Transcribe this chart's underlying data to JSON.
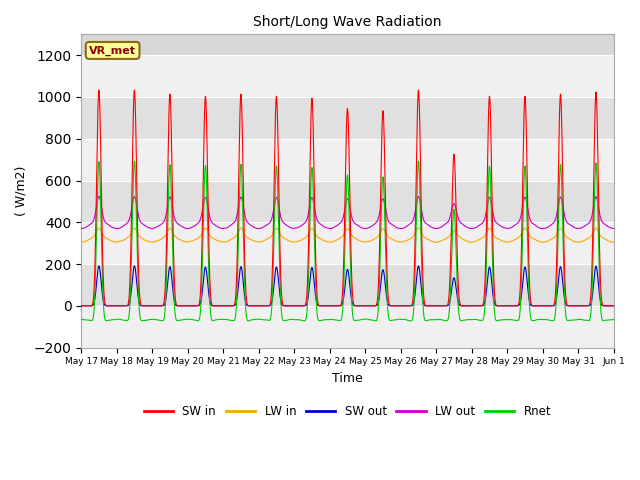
{
  "title": "Short/Long Wave Radiation",
  "xlabel": "Time",
  "ylabel": "( W/m2)",
  "ylim": [
    -200,
    1300
  ],
  "yticks": [
    -200,
    0,
    200,
    400,
    600,
    800,
    1000,
    1200
  ],
  "background_color": "#ffffff",
  "plot_bg_color": "#d8d8d8",
  "grid_color": "#ffffff",
  "annotation_text": "VR_met",
  "annotation_box_color": "#ffff99",
  "annotation_border_color": "#8B6914",
  "legend_labels": [
    "SW in",
    "LW in",
    "SW out",
    "LW out",
    "Rnet"
  ],
  "colors": {
    "SW_in": "#ff0000",
    "LW_in": "#ffa500",
    "SW_out": "#0000cc",
    "LW_out": "#cc00cc",
    "Rnet": "#00cc00"
  },
  "x_tick_labels": [
    "May 17",
    "May 18",
    "May 19",
    "May 20",
    "May 21",
    "May 22",
    "May 23",
    "May 24",
    "May 25",
    "May 26",
    "May 27",
    "May 28",
    "May 29",
    "May 30",
    "May 31",
    "Jun 1"
  ],
  "n_days": 15,
  "pts_per_day": 288,
  "sw_peaks": [
    1040,
    1040,
    1020,
    1010,
    1020,
    1010,
    1000,
    950,
    940,
    1040,
    730,
    1010,
    1010,
    1020,
    1030
  ]
}
